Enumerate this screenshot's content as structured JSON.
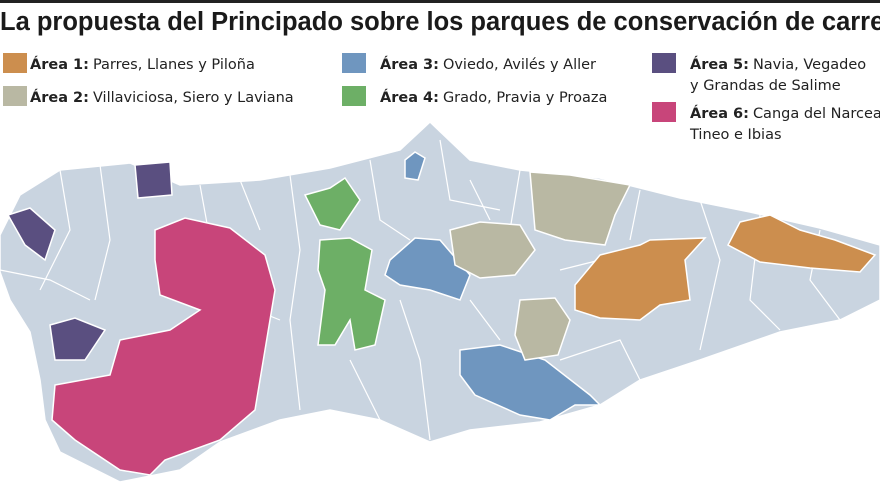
{
  "title": "La propuesta del Principado sobre los parques de conservación de carretera",
  "legend": [
    {
      "label": "Área 1:",
      "text": [
        "Parres, Llanes y Piloña"
      ],
      "color": "#cc8e4e"
    },
    {
      "label": "Área 2:",
      "text": [
        "Villaviciosa, Siero y Laviana"
      ],
      "color": "#b9b8a3"
    },
    {
      "label": "Área 3:",
      "text": [
        "Oviedo, Avilés y Aller"
      ],
      "color": "#6f96bf"
    },
    {
      "label": "Área 4:",
      "text": [
        "Grado, Pravia y Proaza"
      ],
      "color": "#6daf66"
    },
    {
      "label": "Área 5:",
      "text": [
        "Navia, Vegadeo",
        "y Grandas de Salime"
      ],
      "color": "#5a4f80"
    },
    {
      "label": "Área 6:",
      "text": [
        "Canga del Narcea,",
        "Tineo e Ibias"
      ],
      "color": "#c8457a"
    }
  ]
}
